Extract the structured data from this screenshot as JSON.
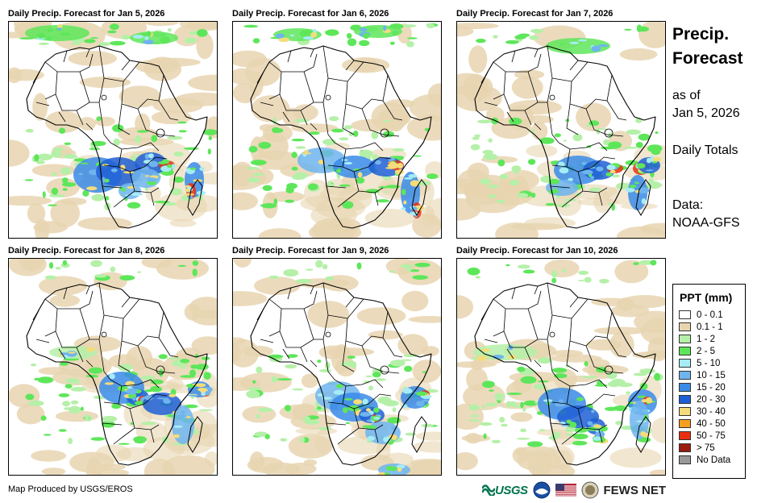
{
  "panels": [
    {
      "title": "Daily Precip. Forecast for Jan 5, 2026"
    },
    {
      "title": "Daily Precip. Forecast for Jan 6, 2026"
    },
    {
      "title": "Daily Precip. Forecast for Jan 7, 2026"
    },
    {
      "title": "Daily Precip. Forecast for Jan 8, 2026"
    },
    {
      "title": "Daily Precip. Forecast for Jan 9, 2026"
    },
    {
      "title": "Daily Precip. Forecast for Jan 10, 2026"
    }
  ],
  "sidebar": {
    "title_line1": "Precip.",
    "title_line2": "Forecast",
    "asof_line1": "as of",
    "asof_line2": "Jan 5, 2026",
    "totals": "Daily Totals",
    "data_line1": "Data:",
    "data_line2": "NOAA-GFS"
  },
  "legend": {
    "title": "PPT (mm)",
    "items": [
      {
        "label": "0 - 0.1",
        "color": "#ffffff"
      },
      {
        "label": "0.1 - 1",
        "color": "#e8d5b0"
      },
      {
        "label": "1 - 2",
        "color": "#b5f0a8"
      },
      {
        "label": "2 - 5",
        "color": "#5ee65a"
      },
      {
        "label": "5 - 10",
        "color": "#a6ecf5"
      },
      {
        "label": "10 - 15",
        "color": "#6fb4ee"
      },
      {
        "label": "15 - 20",
        "color": "#3a8be8"
      },
      {
        "label": "20 - 30",
        "color": "#1f5fd6"
      },
      {
        "label": "30 - 40",
        "color": "#f5dc7a"
      },
      {
        "label": "40 - 50",
        "color": "#f5a020"
      },
      {
        "label": "50 - 75",
        "color": "#e83010"
      },
      {
        "label": "> 75",
        "color": "#9a1a10"
      },
      {
        "label": "No Data",
        "color": "#999999"
      }
    ]
  },
  "footer": {
    "credit": "Map Produced by USGS/EROS",
    "usgs": "USGS",
    "fews": "FEWS NET"
  }
}
